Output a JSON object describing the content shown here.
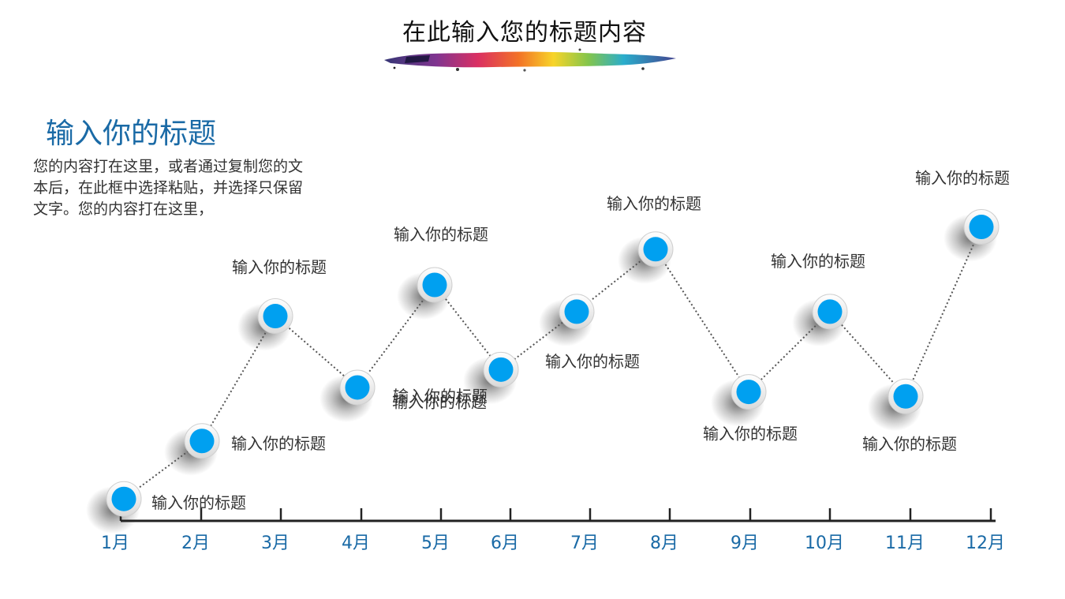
{
  "slide": {
    "title": "在此输入您的标题内容",
    "heading": "输入你的标题",
    "body": "您的内容打在这里，或者通过复制您的文本后，在此框中选择粘贴，并选择只保留文字。您的内容打在这里，"
  },
  "colors": {
    "heading": "#1a6aa6",
    "marker": "#00a0f0",
    "axis_label": "#1a6aa6",
    "line": "#555555",
    "axis": "#222222",
    "point_label": "#333333"
  },
  "chart_data": {
    "type": "line",
    "title": "",
    "xlabel": "",
    "ylabel": "",
    "categories": [
      "1月",
      "2月",
      "3月",
      "4月",
      "5月",
      "6月",
      "7月",
      "8月",
      "9月",
      "10月",
      "11月",
      "12月"
    ],
    "y_axis_visible": false,
    "ylim": [
      0,
      100
    ],
    "grid": false,
    "line_style": "dotted",
    "series": [
      {
        "values": [
          12,
          25,
          53,
          37,
          60,
          41,
          54,
          68,
          36,
          54,
          35,
          73
        ],
        "point_labels": [
          "输入你的标题",
          "输入你的标题",
          "输入你的标题",
          "输入你的标题",
          "输入你的标题",
          "输入你的标题",
          "输入你的标题",
          "输入你的标题",
          "输入你的标题",
          "输入你的标题",
          "输入你的标题",
          "输入你的标题"
        ]
      }
    ]
  }
}
